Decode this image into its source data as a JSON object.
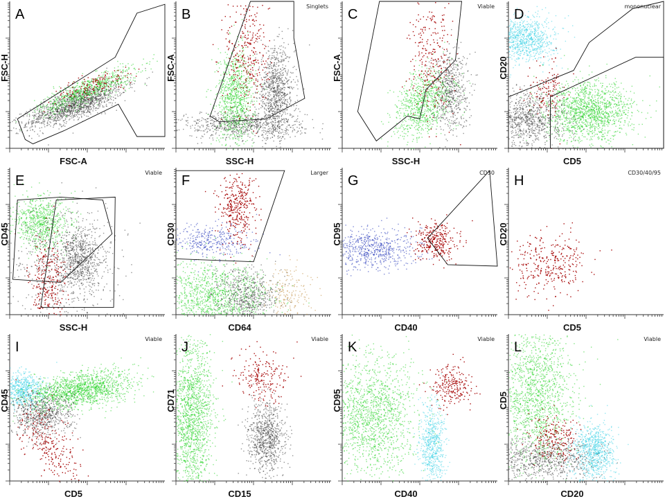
{
  "figure": {
    "colors": {
      "red": "#a40000",
      "green": "#1fd21f",
      "lightgreen": "#8ee58e",
      "cyan": "#3cd2e6",
      "gray": "#3a3a3a",
      "lightgray": "#cfcfcf",
      "blue": "#1428b4",
      "orange": "#c08a3a"
    }
  },
  "chart_data": [
    {
      "type": "scatter",
      "letter": "A",
      "xlabel": "FSC-A",
      "ylabel": "FSC-H",
      "gate_label": "",
      "populations": [
        {
          "name": "debris-gray",
          "color": "gray",
          "points": 1400,
          "cx": 0.42,
          "cy": 0.3,
          "sx": 0.17,
          "sy": 0.045,
          "rot": 22
        },
        {
          "name": "green-cells",
          "color": "green",
          "points": 700,
          "cx": 0.5,
          "cy": 0.4,
          "sx": 0.17,
          "sy": 0.04,
          "rot": 24
        },
        {
          "name": "red-cells",
          "color": "red",
          "points": 130,
          "cx": 0.55,
          "cy": 0.44,
          "sx": 0.14,
          "sy": 0.035,
          "rot": 20
        }
      ],
      "gates": [
        [
          [
            0.1,
            0.06
          ],
          [
            0.05,
            0.2
          ],
          [
            0.68,
            0.62
          ],
          [
            0.82,
            0.92
          ],
          [
            1.0,
            0.98
          ],
          [
            1.0,
            0.08
          ],
          [
            0.82,
            0.08
          ],
          [
            0.7,
            0.3
          ],
          [
            0.35,
            0.12
          ],
          [
            0.15,
            0.03
          ]
        ]
      ]
    },
    {
      "type": "scatter",
      "letter": "B",
      "xlabel": "SSC-H",
      "ylabel": "FSC-A",
      "gate_label": "Singlets",
      "populations": [
        {
          "name": "granulocytes",
          "color": "gray",
          "points": 900,
          "cx": 0.64,
          "cy": 0.38,
          "sx": 0.06,
          "sy": 0.15,
          "rot": 0
        },
        {
          "name": "lower-gray",
          "color": "gray",
          "points": 700,
          "cx": 0.42,
          "cy": 0.16,
          "sx": 0.2,
          "sy": 0.045,
          "rot": 0
        },
        {
          "name": "lymphs",
          "color": "green",
          "points": 900,
          "cx": 0.38,
          "cy": 0.35,
          "sx": 0.06,
          "sy": 0.16,
          "rot": 0
        },
        {
          "name": "red-cells",
          "color": "red",
          "points": 300,
          "cx": 0.46,
          "cy": 0.64,
          "sx": 0.07,
          "sy": 0.22,
          "rot": 0
        }
      ],
      "gates": [
        [
          [
            0.22,
            0.22
          ],
          [
            0.48,
            1.0
          ],
          [
            0.76,
            1.0
          ],
          [
            0.76,
            0.75
          ],
          [
            0.83,
            0.34
          ],
          [
            0.58,
            0.2
          ],
          [
            0.28,
            0.18
          ]
        ]
      ]
    },
    {
      "type": "scatter",
      "letter": "C",
      "xlabel": "SSC-H",
      "ylabel": "FSC-A",
      "gate_label": "Viable",
      "populations": [
        {
          "name": "granulocytes",
          "color": "gray",
          "points": 600,
          "cx": 0.69,
          "cy": 0.4,
          "sx": 0.06,
          "sy": 0.14,
          "rot": 0
        },
        {
          "name": "lymphs",
          "color": "green",
          "points": 800,
          "cx": 0.52,
          "cy": 0.3,
          "sx": 0.08,
          "sy": 0.13,
          "rot": -30
        },
        {
          "name": "red-cells",
          "color": "red",
          "points": 260,
          "cx": 0.57,
          "cy": 0.6,
          "sx": 0.07,
          "sy": 0.2,
          "rot": 0
        }
      ],
      "gates": [
        [
          [
            0.1,
            0.25
          ],
          [
            0.22,
            0.05
          ],
          [
            0.42,
            0.22
          ],
          [
            0.5,
            0.2
          ],
          [
            0.54,
            0.4
          ],
          [
            0.73,
            0.6
          ],
          [
            0.77,
            1.0
          ],
          [
            0.24,
            1.0
          ]
        ]
      ]
    },
    {
      "type": "scatter",
      "letter": "D",
      "xlabel": "CD5",
      "ylabel": "CD20",
      "gate_label": "mononuclear",
      "populations": [
        {
          "name": "b-cells",
          "color": "cyan",
          "points": 900,
          "cx": 0.1,
          "cy": 0.75,
          "sx": 0.1,
          "sy": 0.08,
          "rot": 0
        },
        {
          "name": "t-cells",
          "color": "green",
          "points": 1400,
          "cx": 0.52,
          "cy": 0.25,
          "sx": 0.14,
          "sy": 0.1,
          "rot": 0
        },
        {
          "name": "gray-neg",
          "color": "gray",
          "points": 900,
          "cx": 0.12,
          "cy": 0.2,
          "sx": 0.12,
          "sy": 0.1,
          "rot": 0
        },
        {
          "name": "red-cells",
          "color": "red",
          "points": 120,
          "cx": 0.25,
          "cy": 0.4,
          "sx": 0.06,
          "sy": 0.1,
          "rot": 0
        }
      ],
      "gates": [
        [
          [
            0.0,
            0.35
          ],
          [
            0.42,
            0.53
          ],
          [
            0.52,
            0.72
          ],
          [
            0.8,
            0.95
          ],
          [
            1.0,
            1.0
          ],
          [
            1.0,
            0.0
          ],
          [
            0.0,
            0.0
          ]
        ],
        [
          [
            0.27,
            0.0
          ],
          [
            0.27,
            0.35
          ],
          [
            0.82,
            0.62
          ],
          [
            1.0,
            0.62
          ],
          [
            1.0,
            0.0
          ]
        ]
      ]
    },
    {
      "type": "scatter",
      "letter": "E",
      "xlabel": "SSC-H",
      "ylabel": "CD45",
      "gate_label": "Viable",
      "populations": [
        {
          "name": "lymphs",
          "color": "green",
          "points": 700,
          "cx": 0.2,
          "cy": 0.63,
          "sx": 0.09,
          "sy": 0.09,
          "rot": 0
        },
        {
          "name": "gran",
          "color": "gray",
          "points": 600,
          "cx": 0.45,
          "cy": 0.38,
          "sx": 0.07,
          "sy": 0.1,
          "rot": 0
        },
        {
          "name": "debris",
          "color": "gray",
          "points": 600,
          "cx": 0.35,
          "cy": 0.35,
          "sx": 0.18,
          "sy": 0.2,
          "rot": 0
        },
        {
          "name": "red-cells",
          "color": "red",
          "points": 260,
          "cx": 0.24,
          "cy": 0.22,
          "sx": 0.06,
          "sy": 0.16,
          "rot": 0
        }
      ],
      "gates": [
        [
          [
            0.02,
            0.24
          ],
          [
            0.33,
            0.22
          ],
          [
            0.66,
            0.55
          ],
          [
            0.6,
            0.78
          ],
          [
            0.33,
            0.8
          ],
          [
            0.05,
            0.78
          ]
        ],
        [
          [
            0.2,
            0.05
          ],
          [
            0.67,
            0.05
          ],
          [
            0.68,
            0.8
          ],
          [
            0.3,
            0.78
          ]
        ]
      ]
    },
    {
      "type": "scatter",
      "letter": "F",
      "xlabel": "CD64",
      "ylabel": "CD30",
      "gate_label": "Larger",
      "populations": [
        {
          "name": "blue",
          "color": "blue",
          "points": 350,
          "cx": 0.2,
          "cy": 0.5,
          "sx": 0.15,
          "sy": 0.06,
          "rot": 0
        },
        {
          "name": "red-cells",
          "color": "red",
          "points": 350,
          "cx": 0.4,
          "cy": 0.72,
          "sx": 0.06,
          "sy": 0.12,
          "rot": 0
        },
        {
          "name": "green",
          "color": "green",
          "points": 1200,
          "cx": 0.25,
          "cy": 0.12,
          "sx": 0.18,
          "sy": 0.12,
          "rot": 0
        },
        {
          "name": "gray",
          "color": "gray",
          "points": 600,
          "cx": 0.45,
          "cy": 0.12,
          "sx": 0.1,
          "sy": 0.1,
          "rot": 0
        },
        {
          "name": "orange",
          "color": "orange",
          "points": 200,
          "cx": 0.72,
          "cy": 0.15,
          "sx": 0.08,
          "sy": 0.1,
          "rot": 0
        }
      ],
      "gates": [
        [
          [
            0.0,
            0.38
          ],
          [
            0.5,
            0.36
          ],
          [
            0.7,
            0.98
          ],
          [
            0.0,
            0.98
          ]
        ]
      ]
    },
    {
      "type": "scatter",
      "letter": "G",
      "xlabel": "CD40",
      "ylabel": "CD95",
      "gate_label": "CD30",
      "populations": [
        {
          "name": "blue",
          "color": "blue",
          "points": 600,
          "cx": 0.2,
          "cy": 0.45,
          "sx": 0.15,
          "sy": 0.07,
          "rot": 0
        },
        {
          "name": "red-cells",
          "color": "red",
          "points": 300,
          "cx": 0.6,
          "cy": 0.5,
          "sx": 0.07,
          "sy": 0.06,
          "rot": 0
        }
      ],
      "gates": [
        [
          [
            0.55,
            0.52
          ],
          [
            0.68,
            0.34
          ],
          [
            1.0,
            0.33
          ],
          [
            0.95,
            0.98
          ]
        ]
      ]
    },
    {
      "type": "scatter",
      "letter": "H",
      "xlabel": "CD5",
      "ylabel": "CD20",
      "gate_label": "CD30/40/95",
      "populations": [
        {
          "name": "red-cells",
          "color": "red",
          "points": 320,
          "cx": 0.25,
          "cy": 0.35,
          "sx": 0.12,
          "sy": 0.11,
          "rot": 0
        }
      ],
      "gates": []
    },
    {
      "type": "scatter",
      "letter": "I",
      "xlabel": "CD5",
      "ylabel": "CD45",
      "gate_label": "Viable",
      "populations": [
        {
          "name": "cyan",
          "color": "cyan",
          "points": 600,
          "cx": 0.08,
          "cy": 0.62,
          "sx": 0.07,
          "sy": 0.06,
          "rot": 0
        },
        {
          "name": "green",
          "color": "green",
          "points": 1400,
          "cx": 0.45,
          "cy": 0.62,
          "sx": 0.17,
          "sy": 0.06,
          "rot": 10
        },
        {
          "name": "gray",
          "color": "gray",
          "points": 700,
          "cx": 0.2,
          "cy": 0.45,
          "sx": 0.1,
          "sy": 0.08,
          "rot": 0
        },
        {
          "name": "red-cells",
          "color": "red",
          "points": 260,
          "cx": 0.25,
          "cy": 0.25,
          "sx": 0.07,
          "sy": 0.15,
          "rot": 30
        }
      ],
      "gates": []
    },
    {
      "type": "scatter",
      "letter": "J",
      "xlabel": "CD15",
      "ylabel": "CD71",
      "gate_label": "Viable",
      "populations": [
        {
          "name": "green",
          "color": "green",
          "points": 1500,
          "cx": 0.1,
          "cy": 0.45,
          "sx": 0.07,
          "sy": 0.26,
          "rot": 0
        },
        {
          "name": "gray",
          "color": "gray",
          "points": 800,
          "cx": 0.58,
          "cy": 0.3,
          "sx": 0.06,
          "sy": 0.12,
          "rot": 0
        },
        {
          "name": "red-cells",
          "color": "red",
          "points": 200,
          "cx": 0.55,
          "cy": 0.7,
          "sx": 0.08,
          "sy": 0.1,
          "rot": 0
        }
      ],
      "gates": []
    },
    {
      "type": "scatter",
      "letter": "K",
      "xlabel": "CD40",
      "ylabel": "CD95",
      "gate_label": "Viable",
      "populations": [
        {
          "name": "green",
          "color": "green",
          "points": 1500,
          "cx": 0.18,
          "cy": 0.45,
          "sx": 0.15,
          "sy": 0.2,
          "rot": 0
        },
        {
          "name": "cyan",
          "color": "cyan",
          "points": 600,
          "cx": 0.58,
          "cy": 0.25,
          "sx": 0.04,
          "sy": 0.15,
          "rot": 0
        },
        {
          "name": "red-cells",
          "color": "red",
          "points": 220,
          "cx": 0.7,
          "cy": 0.65,
          "sx": 0.06,
          "sy": 0.07,
          "rot": 0
        }
      ],
      "gates": []
    },
    {
      "type": "scatter",
      "letter": "L",
      "xlabel": "CD20",
      "ylabel": "CD5",
      "gate_label": "Viable",
      "populations": [
        {
          "name": "green",
          "color": "green",
          "points": 1500,
          "cx": 0.18,
          "cy": 0.58,
          "sx": 0.12,
          "sy": 0.25,
          "rot": 0
        },
        {
          "name": "cyan",
          "color": "cyan",
          "points": 800,
          "cx": 0.55,
          "cy": 0.2,
          "sx": 0.07,
          "sy": 0.1,
          "rot": 0
        },
        {
          "name": "gray",
          "color": "gray",
          "points": 800,
          "cx": 0.2,
          "cy": 0.15,
          "sx": 0.18,
          "sy": 0.08,
          "rot": 0
        },
        {
          "name": "red-cells",
          "color": "red",
          "points": 200,
          "cx": 0.3,
          "cy": 0.3,
          "sx": 0.07,
          "sy": 0.08,
          "rot": 0
        }
      ],
      "gates": []
    }
  ]
}
